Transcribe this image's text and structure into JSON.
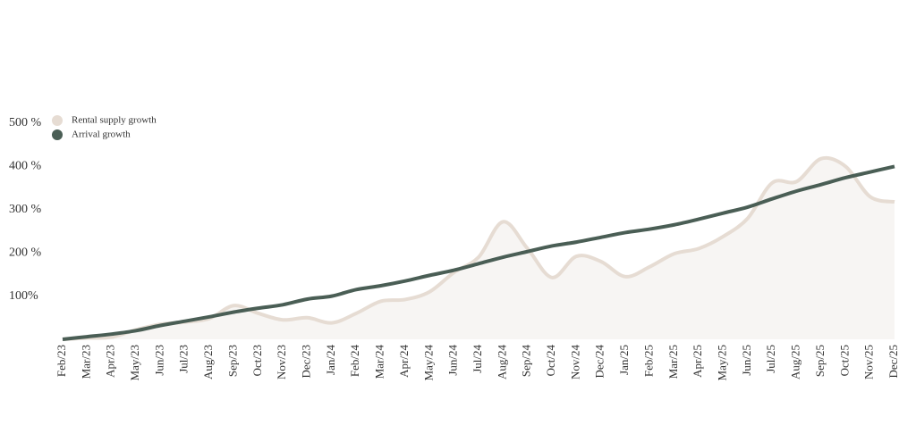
{
  "chart_data": {
    "type": "line",
    "categories": [
      "Feb/23",
      "Mar/23",
      "Apr/23",
      "May/23",
      "Jun/23",
      "Jul/23",
      "Aug/23",
      "Sep/23",
      "Oct/23",
      "Nov/23",
      "Dec/23",
      "Jan/24",
      "Feb/24",
      "Mar/24",
      "Apr/24",
      "May/24",
      "Jun/24",
      "Jul/24",
      "Aug/24",
      "Sep/24",
      "Oct/24",
      "Nov/24",
      "Dec/24",
      "Jan/25",
      "Feb/25",
      "Mar/25",
      "Apr/25",
      "May/25",
      "Jun/25",
      "Jul/25",
      "Aug/25",
      "Sep/25",
      "Oct/25",
      "Nov/25",
      "Dec/25"
    ],
    "series": [
      {
        "name": "Rental supply growth",
        "color": "#e6dcd3",
        "fill": "#f7f5f3",
        "values": [
          0,
          3,
          5,
          22,
          35,
          40,
          48,
          78,
          60,
          45,
          50,
          38,
          60,
          88,
          92,
          110,
          155,
          190,
          272,
          210,
          143,
          192,
          180,
          145,
          168,
          198,
          210,
          238,
          280,
          362,
          365,
          418,
          400,
          330,
          318
        ]
      },
      {
        "name": "Arrival growth",
        "color": "#4a5e55",
        "values": [
          0,
          6,
          12,
          20,
          32,
          42,
          52,
          63,
          72,
          80,
          93,
          100,
          115,
          124,
          135,
          148,
          160,
          175,
          190,
          203,
          216,
          225,
          236,
          247,
          255,
          265,
          278,
          292,
          306,
          325,
          343,
          358,
          374,
          387,
          400
        ]
      }
    ],
    "ylim": [
      0,
      500
    ],
    "yticks": [
      {
        "value": 100,
        "label": "100%"
      },
      {
        "value": 200,
        "label": "200 %"
      },
      {
        "value": 300,
        "label": "300 %"
      },
      {
        "value": 400,
        "label": "400 %"
      },
      {
        "value": 500,
        "label": "500 %"
      }
    ],
    "grid": false,
    "legend": "top-left"
  }
}
